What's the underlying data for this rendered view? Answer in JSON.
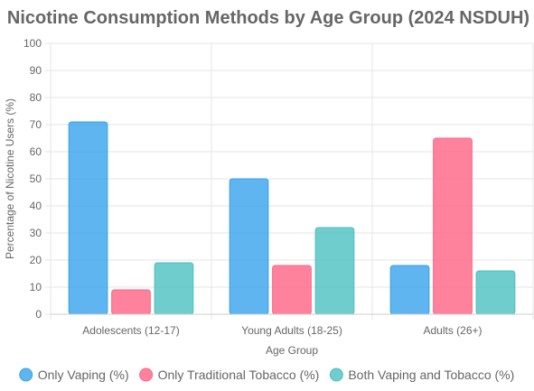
{
  "chart_data": {
    "type": "bar",
    "title": "Nicotine Consumption Methods by Age Group (2024 NSDUH)",
    "xlabel": "Age Group",
    "ylabel": "Percentage of Nicotine Users (%)",
    "ylim": [
      0,
      100
    ],
    "ytick_step": 10,
    "grid": true,
    "legend_position": "bottom",
    "categories": [
      "Adolescents (12-17)",
      "Young Adults (18-25)",
      "Adults (26+)"
    ],
    "series": [
      {
        "name": "Only Vaping (%)",
        "values": [
          71,
          50,
          18
        ],
        "color": "#36a2eb",
        "fill": "rgba(54,162,235,0.8)"
      },
      {
        "name": "Only Traditional Tobacco (%)",
        "values": [
          9,
          18,
          65
        ],
        "color": "#ff6384",
        "fill": "rgba(255,99,132,0.8)"
      },
      {
        "name": "Both Vaping and Tobacco (%)",
        "values": [
          19,
          32,
          16
        ],
        "color": "#4bc0c0",
        "fill": "rgba(75,192,192,0.8)"
      }
    ]
  }
}
